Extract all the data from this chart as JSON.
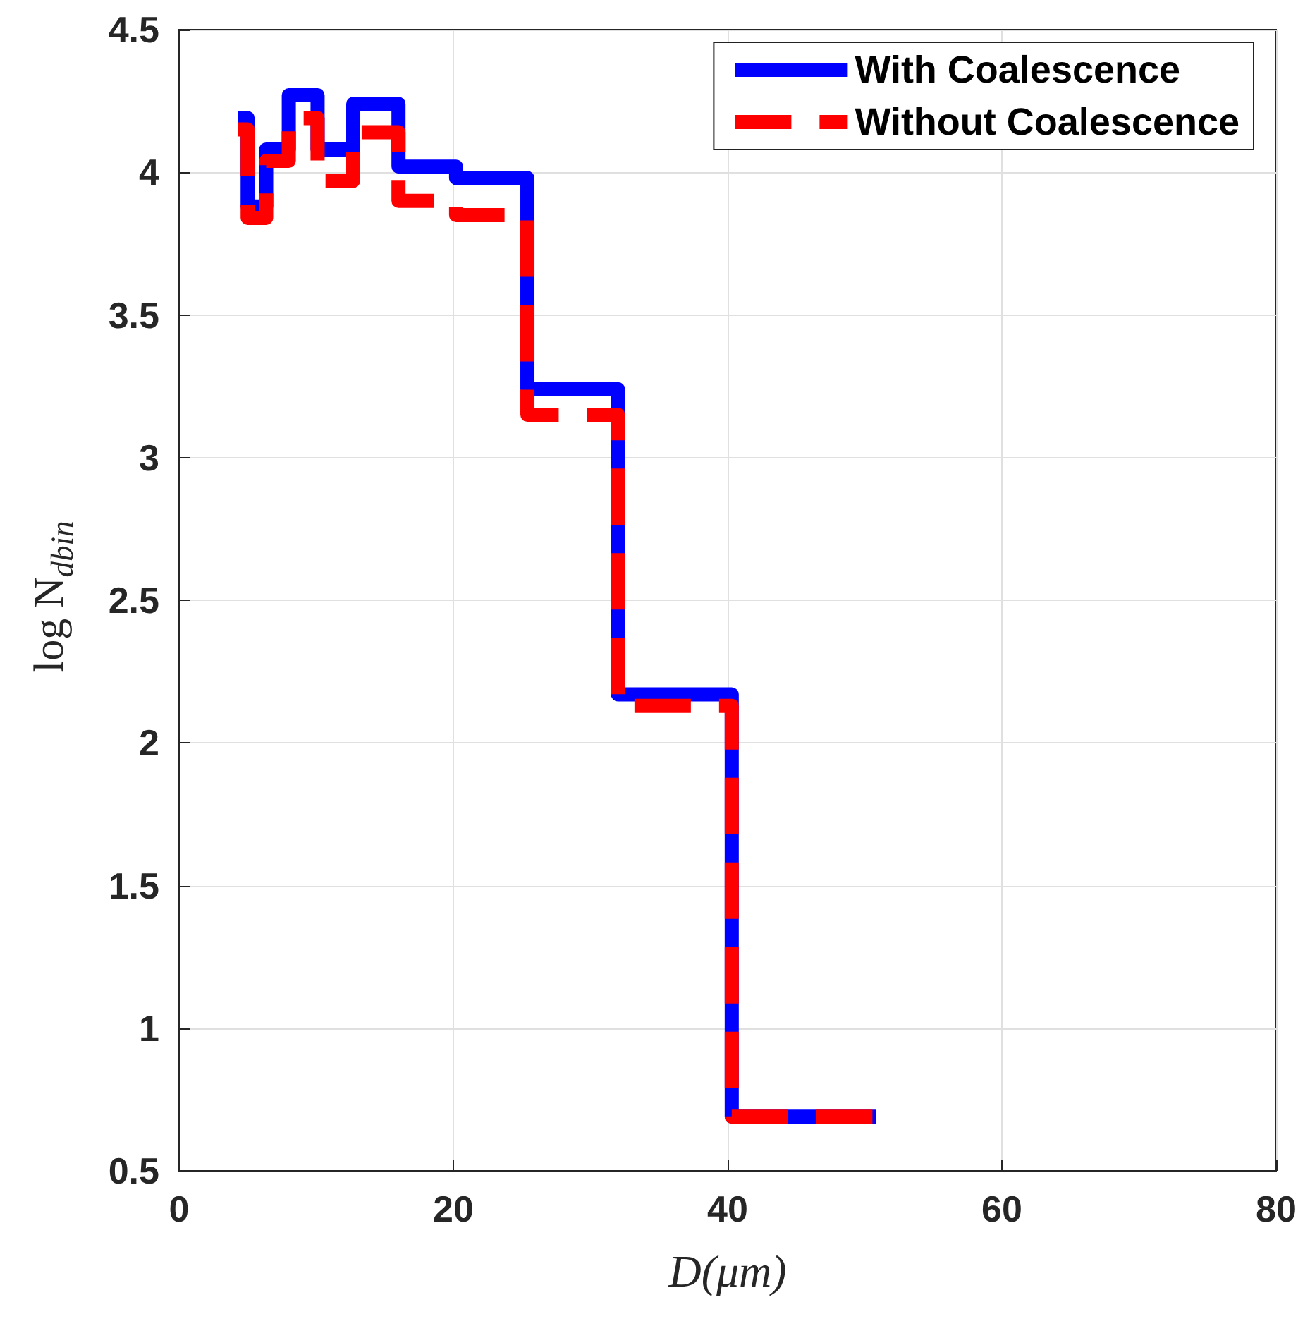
{
  "chart_data": {
    "type": "step",
    "xlabel": "D(μm)",
    "ylabel": "log N$_{dbin}$",
    "x": [
      4.3,
      5.0,
      6.35,
      8.0,
      10.1,
      12.7,
      16.0,
      20.2,
      25.4,
      32.0,
      40.3,
      50.8
    ],
    "series": [
      {
        "name": "With Coalescence",
        "color": "#0000ff",
        "line_style": "solid",
        "values": [
          4.19,
          3.88,
          4.08,
          4.27,
          4.08,
          4.24,
          4.02,
          3.98,
          3.24,
          2.17,
          0.69,
          0.69
        ]
      },
      {
        "name": "Without Coalescence",
        "color": "#ff0000",
        "line_style": "dashed",
        "values": [
          4.15,
          3.84,
          4.04,
          4.19,
          3.97,
          4.14,
          3.9,
          3.85,
          3.15,
          2.13,
          0.69,
          0.69
        ]
      }
    ],
    "xlim": [
      0,
      80
    ],
    "xticks": [
      0,
      20,
      40,
      60,
      80
    ],
    "ylim": [
      0.5,
      4.5
    ],
    "yticks": [
      0.5,
      1,
      1.5,
      2,
      2.5,
      3,
      3.5,
      4,
      4.5
    ],
    "grid": true,
    "legend": "top right",
    "marker": "none"
  }
}
